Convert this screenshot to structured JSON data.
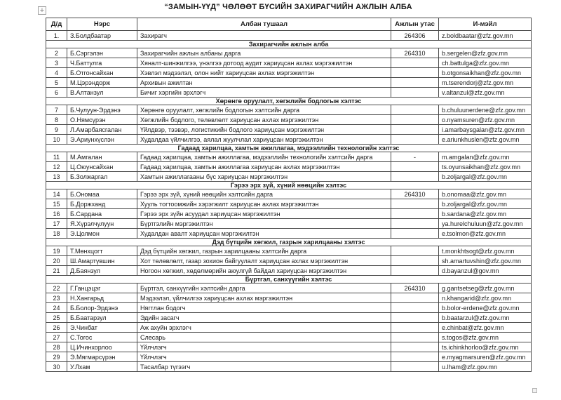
{
  "page": {
    "title": "“ЗАМЫН-ҮҮД” ЧӨЛӨӨТ БҮСИЙН ЗАХИРАГЧИЙН АЖЛЫН АЛБА"
  },
  "icons": {
    "move_handle_glyph": "+",
    "resize_handle": "table-resize-handle"
  },
  "table": {
    "headers": [
      "Д/д",
      "Нэрс",
      "Албан тушаал",
      "Ажлын утас",
      "И-мэйл"
    ],
    "rows": [
      {
        "type": "person",
        "no": "1.",
        "name": "З.Болдбаатар",
        "position": "Захирагч",
        "phone": "264306",
        "email": "z.boldbaatar@zfz.gov.mn"
      },
      {
        "type": "section",
        "label": "Захирагчийн ажлын алба"
      },
      {
        "type": "person",
        "no": "2",
        "name": "Б.Сэргэлэн",
        "position": "Захирагчийн ажлын албаны дарга",
        "phone": "264310",
        "email": "b.sergelen@zfz.gov.mn"
      },
      {
        "type": "person",
        "no": "3",
        "name": "Ч.Баттулга",
        "position": "Хяналт-шинжилгээ, үнэлгээ дотоод аудит хариуцсан ахлах мэргэжилтэн",
        "phone": "",
        "email": "ch.battulga@zfz.gov.mn"
      },
      {
        "type": "person",
        "no": "4",
        "name": "Б.Отгонсайхан",
        "position": "Хэвлэл мэдээлэл, олон нийт хариуцсан ахлах мэргэжилтэн",
        "phone": "",
        "email": "b.otgonsaikhan@zfz.gov.mn"
      },
      {
        "type": "person",
        "no": "5",
        "name": "М.Цэрэндорж",
        "position": "Архивын ажилтан",
        "phone": "",
        "email": "m.tserendorj@zfz.gov.mn"
      },
      {
        "type": "person",
        "no": "6",
        "name": "В.Алтанзул",
        "position": "Бичиг хэргийн эрхлэгч",
        "phone": "",
        "email": "v.altanzul@zfz.gov.mn"
      },
      {
        "type": "section",
        "label": "Хөрөнгө оруулалт, хөгжлийн бодлогын хэлтэс"
      },
      {
        "type": "person",
        "no": "7",
        "name": "Б.Чулуун-Эрдэнэ",
        "position": "Хөрөнгө оруулалт, хөгжлийн бодлогын  хэлтсийн дарга",
        "phone": "",
        "email": "b.chuluunerdene@zfz.gov.mn"
      },
      {
        "type": "person",
        "no": "8",
        "name": "О.Нямсүрэн",
        "position": "Хөгжлийн бодлого, төлөвлөлт хариуцсан ахлах мэргэжилтэн",
        "phone": "",
        "email": "o.nyamsuren@zfz.gov.mn"
      },
      {
        "type": "person",
        "no": "9",
        "name": "Л.Амарбаясгалан",
        "position": "Үйлдвэр, тээвэр, логистикийн бодлого хариуцсан мэргэжилтэн",
        "phone": "",
        "email": "i.amarbaysgalan@zfz.gov.mn"
      },
      {
        "type": "person",
        "no": "10",
        "name": "Э.Ариунхүслэн",
        "position": "Худалдаа үйлчилгээ, аялал жуулчлал хариуцсан мэргэжилтэн",
        "phone": "",
        "email": "e.ariunkhuslen@zfz.gov.mn"
      },
      {
        "type": "section",
        "label": "Гадаад харилцаа, хамтын ажиллагаа, мэдээллийн технологийн хэлтэс"
      },
      {
        "type": "person",
        "no": "11",
        "name": "М.Амгалан",
        "position": "Гадаад харилцаа, хамтын ажиллагаа, мэдээллийн технологийн хэлтсийн дарга",
        "phone": "-",
        "email": "m.amgalan@zfz.gov.mn"
      },
      {
        "type": "person",
        "no": "12",
        "name": "Ц.Оюунсайхан",
        "position": "Гадаад харилцаа, хамтын ажиллагаа хариуцсан ахлах мэргэжилтэн",
        "phone": "",
        "email": "ts.oyunsaikhan@zfz.gov.mn"
      },
      {
        "type": "person",
        "no": "13",
        "name": "Б.Золжаргал",
        "position": "Хамтын ажиллагааны бүс хариуцсан мэргэжилтэн",
        "phone": "",
        "email": "b.zoljargal@zfz.gov.mn"
      },
      {
        "type": "section",
        "label": "Гэрээ эрх зүй, хүний нөөцийн хэлтэс"
      },
      {
        "type": "person",
        "no": "14",
        "name": "Б.Ономаа",
        "position": "Гэрээ эрх зүй, хүний нөөцийн хэлтсийн дарга",
        "phone": "264310",
        "email": "b.onomaa@zfz.gov.mn"
      },
      {
        "type": "person",
        "no": "15",
        "name": "Б.Доржханд",
        "position": "Хууль тогтоомжийн хэрэгжилт хариуцсан ахлах мэргэжилтэн",
        "phone": "",
        "email": "b.zoljargal@zfz.gov.mn"
      },
      {
        "type": "person",
        "no": "16",
        "name": "Б.Сардана",
        "position": "Гэрээ эрх зүйн асуудал хариуцсан мэргэжилтэн",
        "phone": "",
        "email": "b.sardana@zfz.gov.mn"
      },
      {
        "type": "person",
        "no": "17",
        "name": "Я.Хүрэлчулуун",
        "position": "Бүртгэлийн мэргэжилтэн",
        "phone": "",
        "email": "ya.hurelchuluun@zfz.gov.mn"
      },
      {
        "type": "person",
        "no": "18",
        "name": "Э.Цолмон",
        "position": "Худалдан авалт хариуцсан мэргэжилтэн",
        "phone": "",
        "email": "e.tsolmon@zfz.gov.mn"
      },
      {
        "type": "section",
        "label": "Дэд бүтцийн хөгжил, газрын харилцааны хэлтэс"
      },
      {
        "type": "person",
        "no": "19",
        "name": "Т.Мөнхцогт",
        "position": "Дэд бүтцийн хөгжил, газрын харилцааны хэлтсийн дарга",
        "phone": "",
        "email": "t.monkhtsogt@zfz.gov.mn"
      },
      {
        "type": "person",
        "no": "20",
        "name": "Ш.Амартүвшин",
        "position": "Хот төлөвлөлт, газар зохион байгуулалт хариуцсан ахлах мэргэжилтэн",
        "phone": "",
        "email": "sh.amartuvshin@zfz.gov.mn"
      },
      {
        "type": "person",
        "no": "21",
        "name": "Д.Баянзул",
        "position": "Ногоон хөгжил, хөдөлмөрийн аюулгүй байдал хариуцсан мэргэжилтэн",
        "phone": "",
        "email": "d.bayanzul@gov.mn"
      },
      {
        "type": "section",
        "label": "Бүртгэл, санхүүгийн хэлтэс"
      },
      {
        "type": "person",
        "no": "22",
        "name": "Г.Ганцэцэг",
        "position": "Бүртгэл, санхүүгийн хэлтсийн дарга",
        "phone": "264310",
        "email": "g.gantsetseg@zfz.gov.mn"
      },
      {
        "type": "person",
        "no": "23",
        "name": "Н.Хангарьд",
        "position": "Мэдээлэл, үйлчилгээ хариуцсан ахлах мэргэжилтэн",
        "phone": "",
        "email": "n.khangarid@zfz.gov.mn"
      },
      {
        "type": "person",
        "no": "24",
        "name": "Б.Болор-Эрдэнэ",
        "position": "Нягтлан бодогч",
        "phone": "",
        "email": "b.bolor-erdene@zfz.gov.mn"
      },
      {
        "type": "person",
        "no": "25",
        "name": "Б.Баатарзул",
        "position": "Эдийн засагч",
        "phone": "",
        "email": "b.baatarzul@zfz.gov.mn"
      },
      {
        "type": "person",
        "no": "26",
        "name": "Э.Чинбат",
        "position": "Аж ахуйн эрхлэгч",
        "phone": "",
        "email": "e.chinbat@zfz.gov.mn"
      },
      {
        "type": "person",
        "no": "27",
        "name": "С.Тогос",
        "position": "Слесарь",
        "phone": "",
        "email": "s.togos@zfz.gov.mn"
      },
      {
        "type": "person",
        "no": "28",
        "name": "Ц.Ичинхорлоо",
        "position": "Үйлчлэгч",
        "phone": "",
        "email": "ts.ichinkhorloo@zfz.gov.mn"
      },
      {
        "type": "person",
        "no": "29",
        "name": "Э.Мягмарсүрэн",
        "position": "Үйлчлэгч",
        "phone": "",
        "email": "e.myagmarsuren@zfz.gov.mn"
      },
      {
        "type": "person",
        "no": "30",
        "name": "У.Лхам",
        "position": "Тасалбар түгээгч",
        "phone": "",
        "email": "u.lham@zfz.gov.mn"
      }
    ]
  }
}
